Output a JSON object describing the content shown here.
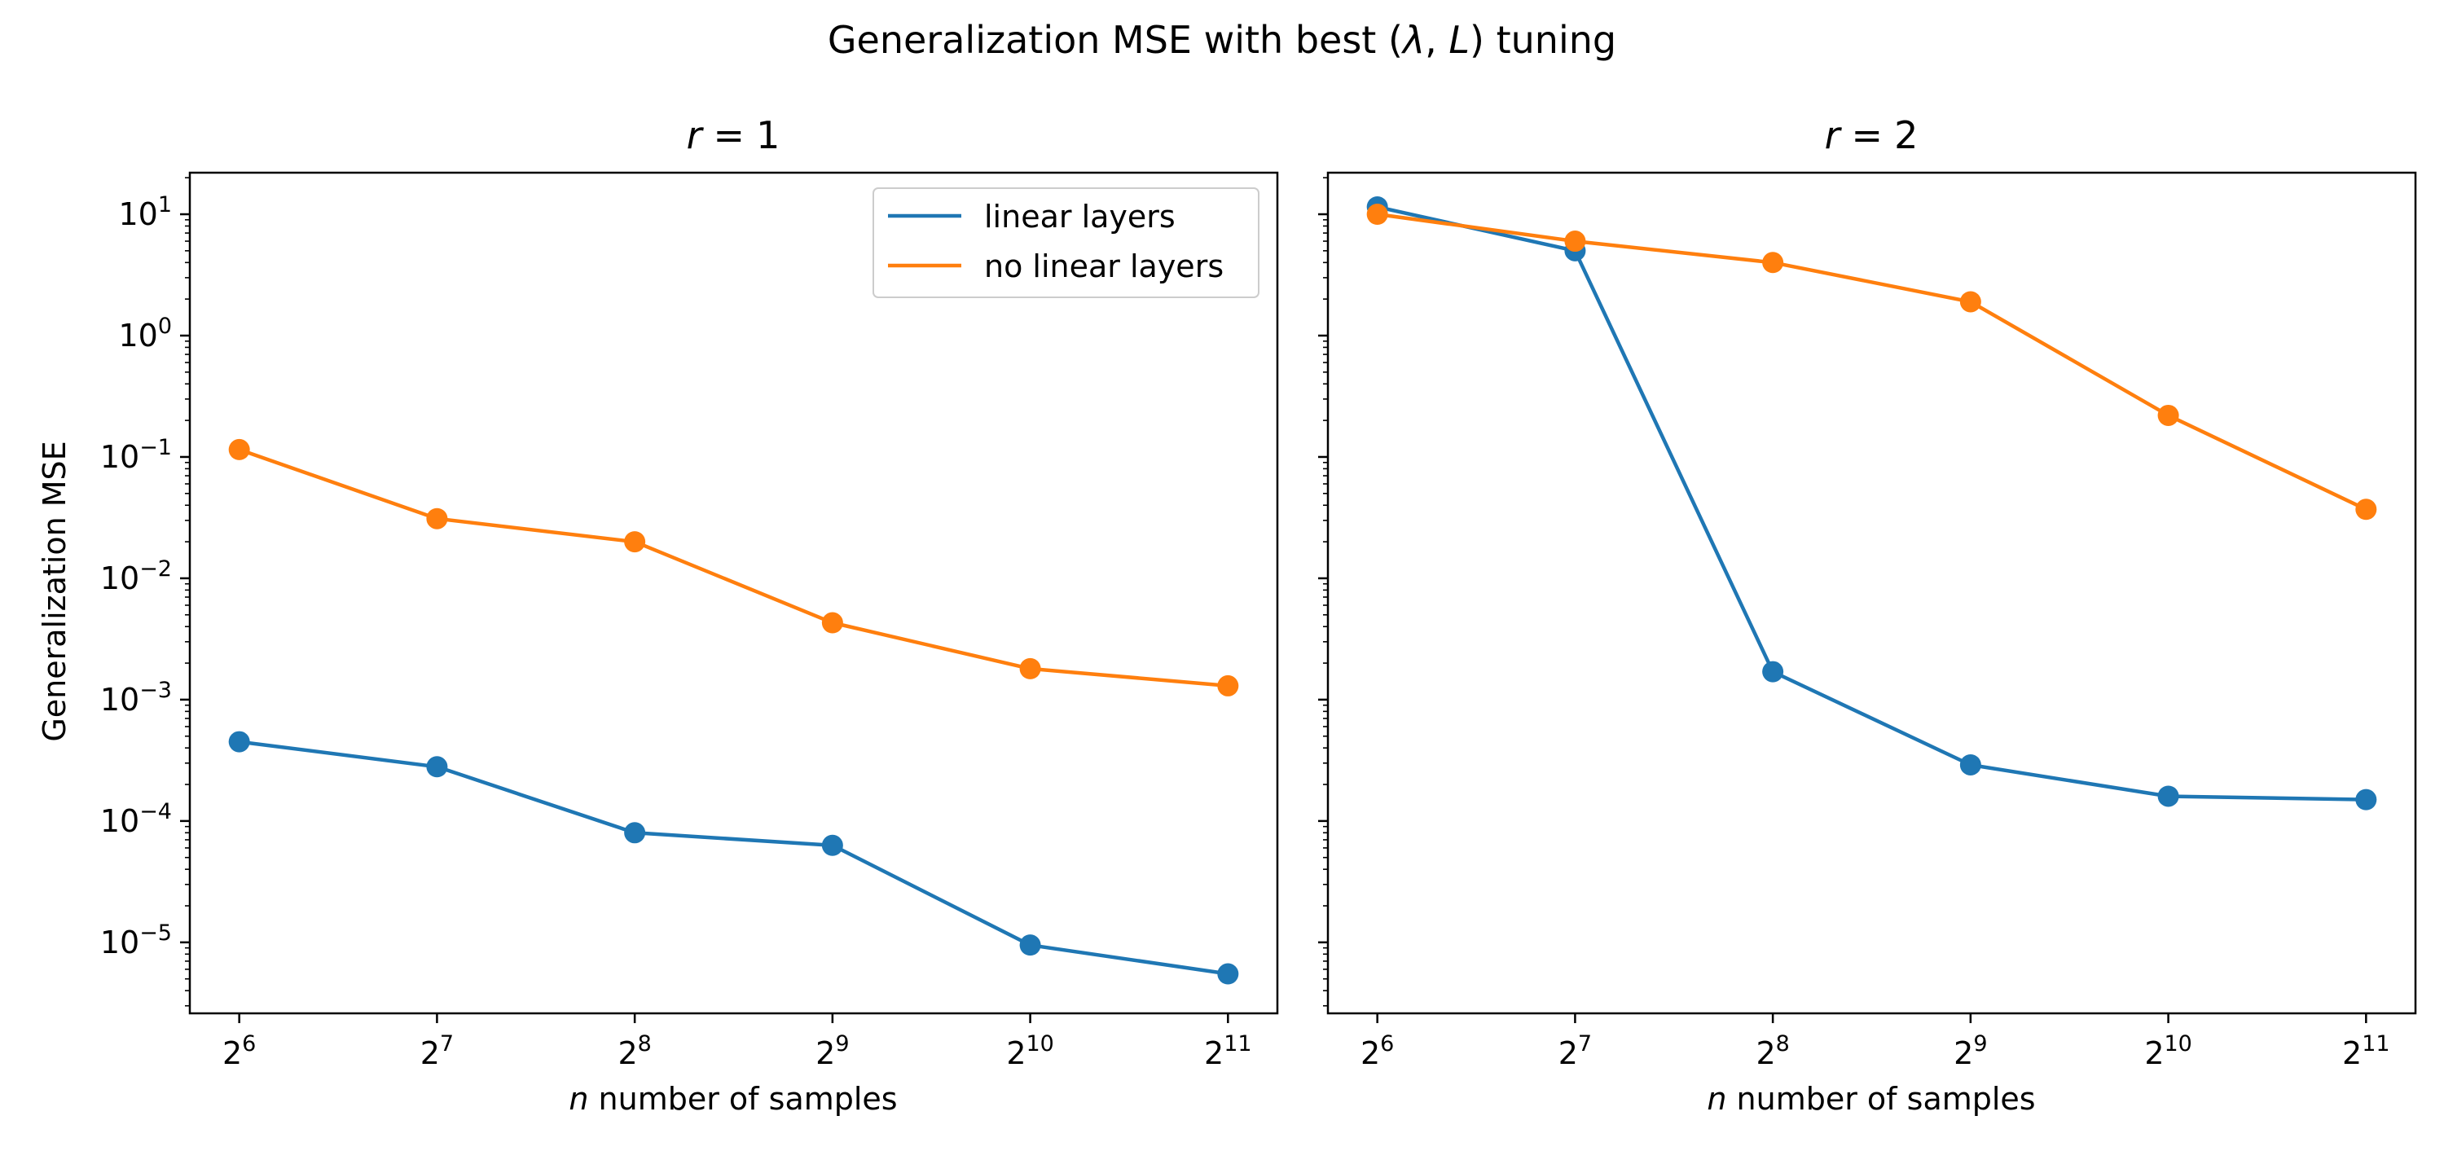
{
  "figure": {
    "suptitle_prefix": "Generalization MSE with best (",
    "suptitle_lambda": "λ",
    "suptitle_comma": ", ",
    "suptitle_L": "L",
    "suptitle_suffix": ") tuning",
    "ylabel": "Generalization MSE",
    "xlabel_var": "n",
    "xlabel_text": " number of samples"
  },
  "colors": {
    "linear": "#1f77b4",
    "nolinear": "#ff7f0e"
  },
  "chart_data": [
    {
      "type": "line",
      "title": "r = 1",
      "title_var": "r",
      "title_value": "1",
      "x": [
        64,
        128,
        256,
        512,
        1024,
        2048
      ],
      "x_tick_base": "2",
      "x_tick_exponents": [
        "6",
        "7",
        "8",
        "9",
        "10",
        "11"
      ],
      "xscale": "log2",
      "yscale": "log10",
      "ylim": [
        2.6e-06,
        22
      ],
      "y_tick_exponents": [
        "1",
        "0",
        "−1",
        "−2",
        "−3",
        "−4",
        "−5"
      ],
      "ylabel": "Generalization MSE",
      "xlabel": "n number of samples",
      "legend": "top-right",
      "series": [
        {
          "name": "linear layers",
          "color": "#1f77b4",
          "values": [
            0.00045,
            0.00028,
            8e-05,
            6.3e-05,
            9.5e-06,
            5.5e-06
          ]
        },
        {
          "name": "no linear layers",
          "color": "#ff7f0e",
          "values": [
            0.115,
            0.031,
            0.02,
            0.0043,
            0.0018,
            0.0013
          ]
        }
      ]
    },
    {
      "type": "line",
      "title": "r = 2",
      "title_var": "r",
      "title_value": "2",
      "x": [
        64,
        128,
        256,
        512,
        1024,
        2048
      ],
      "x_tick_base": "2",
      "x_tick_exponents": [
        "6",
        "7",
        "8",
        "9",
        "10",
        "11"
      ],
      "xscale": "log2",
      "yscale": "log10",
      "ylim": [
        2.6e-06,
        22
      ],
      "sharey": true,
      "xlabel": "n number of samples",
      "series": [
        {
          "name": "linear layers",
          "color": "#1f77b4",
          "values": [
            11.5,
            5.0,
            0.0017,
            0.00029,
            0.00016,
            0.00015
          ]
        },
        {
          "name": "no linear layers",
          "color": "#ff7f0e",
          "values": [
            10.0,
            6.0,
            4.0,
            1.9,
            0.22,
            0.037
          ]
        }
      ]
    }
  ]
}
